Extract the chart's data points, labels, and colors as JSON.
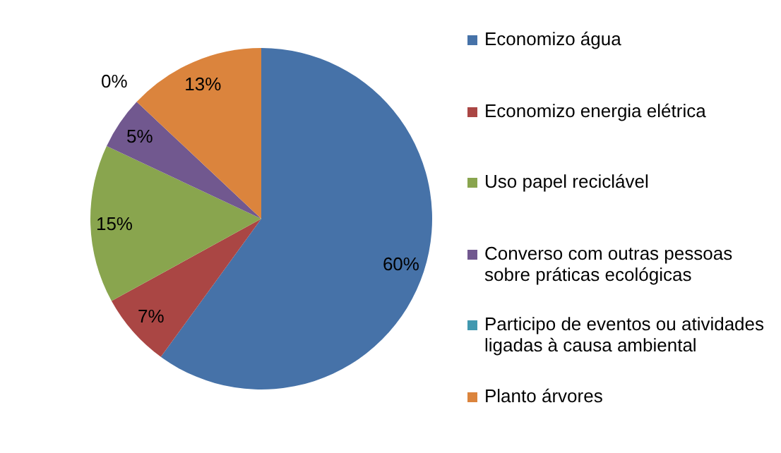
{
  "chart_data": {
    "type": "pie",
    "categories": [
      "Economizo água",
      "Economizo energia elétrica",
      "Uso papel reciclável",
      "Converso com outras pessoas sobre práticas ecológicas",
      "Participo de eventos ou atividades ligadas à causa ambiental",
      "Planto árvores"
    ],
    "values": [
      60,
      7,
      15,
      5,
      0,
      13
    ],
    "colors": [
      "#4672a8",
      "#aa4644",
      "#89a54e",
      "#71588f",
      "#4198af",
      "#db843d"
    ],
    "value_labels": [
      "60%",
      "7%",
      "15%",
      "5%",
      "0%",
      "13%"
    ],
    "legend": "right"
  }
}
